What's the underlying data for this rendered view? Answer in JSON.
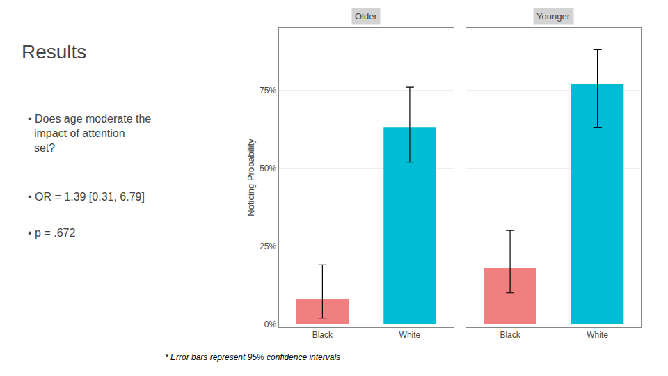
{
  "title": "Results",
  "annotations": [
    "• Does age moderate the impact of attention set?",
    "• OR = 1.39 [0.31, 6.79]",
    "• p = .672",
    "* Error bars represent 95% confidence intervals"
  ],
  "chart_data": [
    {
      "type": "bar",
      "title": "Older",
      "categories": [
        "Black",
        "White"
      ],
      "values": [
        0.08,
        0.63
      ],
      "ci_lower": [
        0.02,
        0.52
      ],
      "ci_upper": [
        0.19,
        0.76
      ],
      "colors": [
        "#F08080",
        "#00BCD4"
      ],
      "ylabel": "Noticing Probability",
      "ylim": [
        -0.01,
        0.95
      ],
      "yticks": [
        {
          "value": 0.0,
          "label": "0%"
        },
        {
          "value": 0.25,
          "label": "25%"
        },
        {
          "value": 0.5,
          "label": "50%"
        },
        {
          "value": 0.75,
          "label": "75%"
        }
      ],
      "grid": true
    },
    {
      "type": "bar",
      "title": "Younger",
      "categories": [
        "Black",
        "White"
      ],
      "values": [
        0.18,
        0.77
      ],
      "ci_lower": [
        0.1,
        0.63
      ],
      "ci_upper": [
        0.3,
        0.88
      ],
      "colors": [
        "#F08080",
        "#00BCD4"
      ],
      "ylim": [
        -0.01,
        0.95
      ],
      "yticks": [
        {
          "value": 0.0,
          "label": "0%"
        },
        {
          "value": 0.25,
          "label": "25%"
        },
        {
          "value": 0.5,
          "label": "50%"
        },
        {
          "value": 0.75,
          "label": "75%"
        }
      ],
      "grid": true,
      "tick_labels": "x"
    }
  ]
}
